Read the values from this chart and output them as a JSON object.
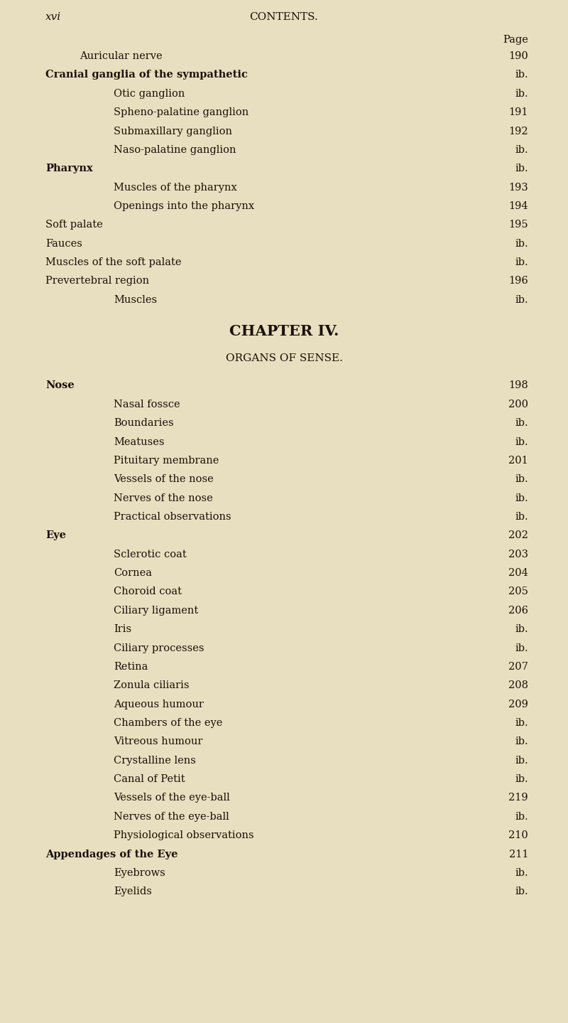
{
  "bg_color": "#e8dfc0",
  "text_color": "#1a1008",
  "page_width": 8.0,
  "page_height": 14.39,
  "header_left": "xvi",
  "header_center": "CONTENTS.",
  "page_label": "Page",
  "chapter_heading": "CHAPTER IV.",
  "section_heading": "ORGANS OF SENSE.",
  "entries": [
    {
      "text": "Auricular nerve",
      "indent": 1,
      "page": "190",
      "style": "normal"
    },
    {
      "text": "Cranial ganglia of the sympathetic",
      "indent": 0,
      "page": "ib.",
      "style": "smallcaps"
    },
    {
      "text": "Otic ganglion",
      "indent": 2,
      "page": "ib.",
      "style": "normal"
    },
    {
      "text": "Spheno-palatine ganglion",
      "indent": 2,
      "page": "191",
      "style": "normal"
    },
    {
      "text": "Submaxillary ganglion",
      "indent": 2,
      "page": "192",
      "style": "normal"
    },
    {
      "text": "Naso-palatine ganglion",
      "indent": 2,
      "page": "ib.",
      "style": "normal"
    },
    {
      "text": "Pharynx",
      "indent": 0,
      "page": "ib.",
      "style": "smallcaps"
    },
    {
      "text": "Muscles of the pharynx",
      "indent": 2,
      "page": "193",
      "style": "normal"
    },
    {
      "text": "Openings into the pharynx",
      "indent": 2,
      "page": "194",
      "style": "normal"
    },
    {
      "text": "Soft palate",
      "indent": 0,
      "page": "195",
      "style": "normal"
    },
    {
      "text": "Fauces",
      "indent": 0,
      "page": "ib.",
      "style": "normal"
    },
    {
      "text": "Muscles of the soft palate",
      "indent": 0,
      "page": "ib.",
      "style": "normal"
    },
    {
      "text": "Prevertebral region",
      "indent": 0,
      "page": "196",
      "style": "normal"
    },
    {
      "text": "Muscles",
      "indent": 2,
      "page": "ib.",
      "style": "normal"
    }
  ],
  "entries2": [
    {
      "text": "Nose",
      "indent": 0,
      "page": "198",
      "style": "smallcaps"
    },
    {
      "text": "Nasal fossce",
      "indent": 2,
      "page": "200",
      "style": "normal"
    },
    {
      "text": "Boundaries",
      "indent": 2,
      "page": "ib.",
      "style": "normal"
    },
    {
      "text": "Meatuses",
      "indent": 2,
      "page": "ib.",
      "style": "normal"
    },
    {
      "text": "Pituitary membrane",
      "indent": 2,
      "page": "201",
      "style": "normal"
    },
    {
      "text": "Vessels of the nose",
      "indent": 2,
      "page": "ib.",
      "style": "normal"
    },
    {
      "text": "Nerves of the nose",
      "indent": 2,
      "page": "ib.",
      "style": "normal"
    },
    {
      "text": "Practical observations",
      "indent": 2,
      "page": "ib.",
      "style": "normal"
    },
    {
      "text": "Eye",
      "indent": 0,
      "page": "202",
      "style": "smallcaps"
    },
    {
      "text": "Sclerotic coat",
      "indent": 2,
      "page": "203",
      "style": "normal"
    },
    {
      "text": "Cornea",
      "indent": 2,
      "page": "204",
      "style": "normal"
    },
    {
      "text": "Choroid coat",
      "indent": 2,
      "page": "205",
      "style": "normal"
    },
    {
      "text": "Ciliary ligament",
      "indent": 2,
      "page": "206",
      "style": "normal"
    },
    {
      "text": "Iris",
      "indent": 2,
      "page": "ib.",
      "style": "normal"
    },
    {
      "text": "Ciliary processes",
      "indent": 2,
      "page": "ib.",
      "style": "normal"
    },
    {
      "text": "Retina",
      "indent": 2,
      "page": "207",
      "style": "normal"
    },
    {
      "text": "Zonula ciliaris",
      "indent": 2,
      "page": "208",
      "style": "normal"
    },
    {
      "text": "Aqueous humour",
      "indent": 2,
      "page": "209",
      "style": "normal"
    },
    {
      "text": "Chambers of the eye",
      "indent": 2,
      "page": "ib.",
      "style": "normal"
    },
    {
      "text": "Vitreous humour",
      "indent": 2,
      "page": "ib.",
      "style": "normal"
    },
    {
      "text": "Crystalline lens",
      "indent": 2,
      "page": "ib.",
      "style": "normal"
    },
    {
      "text": "Canal of Petit",
      "indent": 2,
      "page": "ib.",
      "style": "normal"
    },
    {
      "text": "Vessels of the eye-ball",
      "indent": 2,
      "page": "219",
      "style": "normal"
    },
    {
      "text": "Nerves of the eye-ball",
      "indent": 2,
      "page": "ib.",
      "style": "normal"
    },
    {
      "text": "Physiological observations",
      "indent": 2,
      "page": "210",
      "style": "normal"
    },
    {
      "text": "Appendages of the Eye",
      "indent": 0,
      "page": "211",
      "style": "smallcaps"
    },
    {
      "text": "Eyebrows",
      "indent": 2,
      "page": "ib.",
      "style": "normal"
    },
    {
      "text": "Eyelids",
      "indent": 2,
      "page": "ib.",
      "style": "normal"
    }
  ]
}
